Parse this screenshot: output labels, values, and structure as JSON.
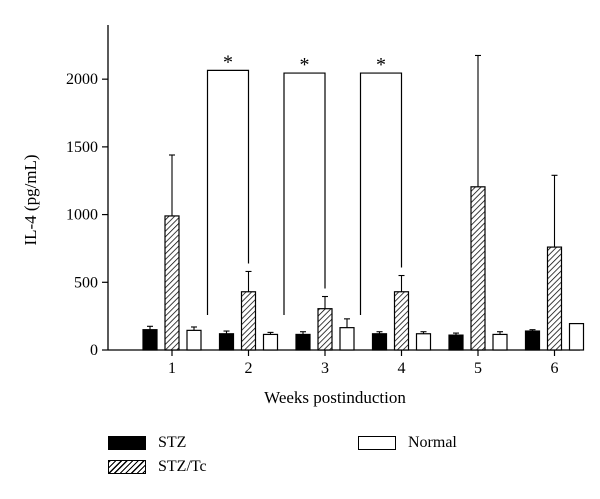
{
  "chart_data": {
    "type": "bar",
    "xlabel": "Weeks postinduction",
    "ylabel": "IL-4 (pg/mL)",
    "ylim": [
      0,
      2400
    ],
    "yticks": [
      0,
      500,
      1000,
      1500,
      2000
    ],
    "categories": [
      "1",
      "2",
      "3",
      "4",
      "5",
      "6"
    ],
    "series": [
      {
        "name": "STZ",
        "fill": "solid-black",
        "values": [
          150,
          120,
          115,
          120,
          110,
          140
        ],
        "errors": [
          25,
          20,
          20,
          15,
          15,
          10
        ]
      },
      {
        "name": "STZ/Tc",
        "fill": "hatched",
        "values": [
          990,
          430,
          305,
          430,
          1205,
          760
        ],
        "errors": [
          450,
          150,
          90,
          120,
          970,
          530
        ]
      },
      {
        "name": "Normal",
        "fill": "white",
        "values": [
          145,
          115,
          165,
          120,
          115,
          195
        ],
        "errors": [
          25,
          15,
          65,
          15,
          20,
          0
        ]
      }
    ],
    "significance": [
      {
        "week": "2",
        "label": "*",
        "bracket_top": 2065
      },
      {
        "week": "3",
        "label": "*",
        "bracket_top": 2045
      },
      {
        "week": "4",
        "label": "*",
        "bracket_top": 2045
      }
    ],
    "legend": {
      "placement": "bottom"
    }
  }
}
